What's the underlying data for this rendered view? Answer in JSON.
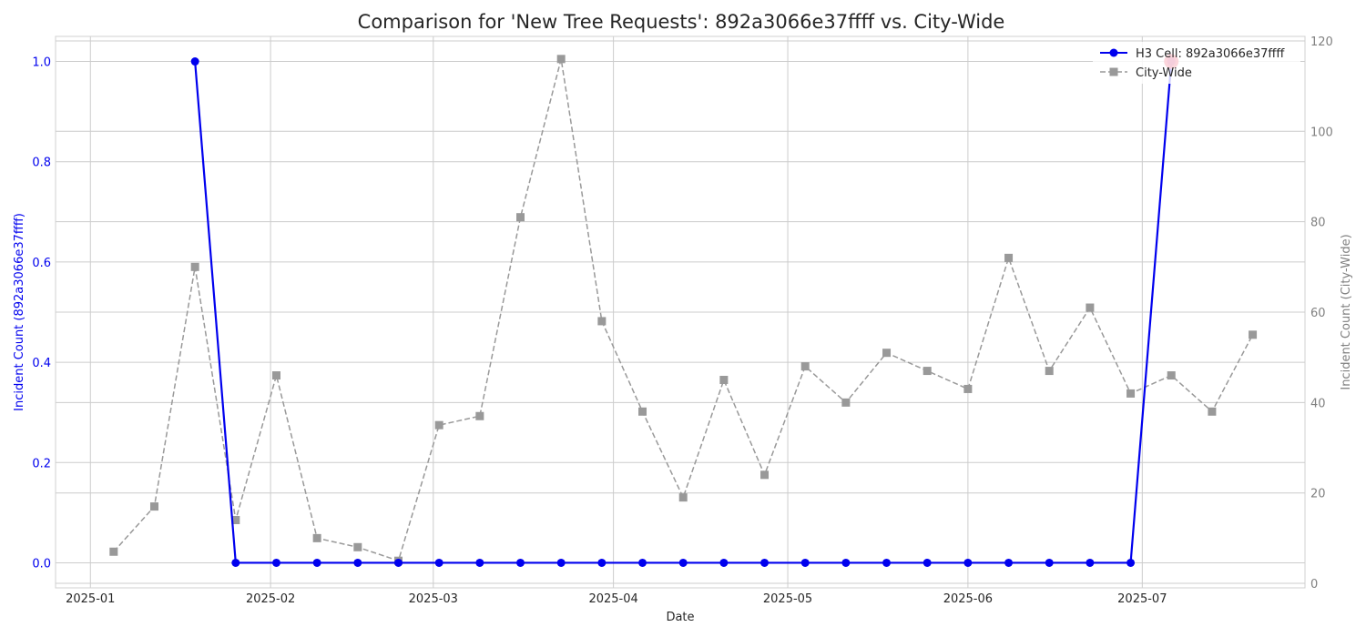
{
  "chart_data": {
    "type": "line",
    "title": "Comparison for 'New Tree Requests': 892a3066e37ffff vs. City-Wide",
    "xlabel": "Date",
    "ylabel_left": "Incident Count (892a3066e37ffff)",
    "ylabel_right": "Incident Count (City-Wide)",
    "xlim": [
      "2024-12-26",
      "2025-07-29"
    ],
    "ylim_left": [
      -0.05,
      1.05
    ],
    "ylim_right": [
      -1,
      121
    ],
    "x_ticks": [
      {
        "date": "2025-01-01",
        "label": "2025-01"
      },
      {
        "date": "2025-02-01",
        "label": "2025-02"
      },
      {
        "date": "2025-03-01",
        "label": "2025-03"
      },
      {
        "date": "2025-04-01",
        "label": "2025-04"
      },
      {
        "date": "2025-05-01",
        "label": "2025-05"
      },
      {
        "date": "2025-06-01",
        "label": "2025-06"
      },
      {
        "date": "2025-07-01",
        "label": "2025-07"
      }
    ],
    "y_ticks_left": [
      "0.0",
      "0.2",
      "0.4",
      "0.6",
      "0.8",
      "1.0"
    ],
    "y_ticks_right": [
      "0",
      "20",
      "40",
      "60",
      "80",
      "100",
      "120"
    ],
    "grid": true,
    "legend_position": "top-right",
    "highlight": {
      "date": "2025-07-06",
      "value": 1,
      "color": "#ee1133"
    },
    "series": [
      {
        "name": "H3 Cell: 892a3066e37ffff",
        "axis": "left",
        "color": "#0000ee",
        "line_style": "solid",
        "marker": "circle",
        "points": [
          {
            "x": "2025-01-19",
            "y": 1
          },
          {
            "x": "2025-01-26",
            "y": 0
          },
          {
            "x": "2025-02-02",
            "y": 0
          },
          {
            "x": "2025-02-09",
            "y": 0
          },
          {
            "x": "2025-02-16",
            "y": 0
          },
          {
            "x": "2025-02-23",
            "y": 0
          },
          {
            "x": "2025-03-02",
            "y": 0
          },
          {
            "x": "2025-03-09",
            "y": 0
          },
          {
            "x": "2025-03-16",
            "y": 0
          },
          {
            "x": "2025-03-23",
            "y": 0
          },
          {
            "x": "2025-03-30",
            "y": 0
          },
          {
            "x": "2025-04-06",
            "y": 0
          },
          {
            "x": "2025-04-13",
            "y": 0
          },
          {
            "x": "2025-04-20",
            "y": 0
          },
          {
            "x": "2025-04-27",
            "y": 0
          },
          {
            "x": "2025-05-04",
            "y": 0
          },
          {
            "x": "2025-05-11",
            "y": 0
          },
          {
            "x": "2025-05-18",
            "y": 0
          },
          {
            "x": "2025-05-25",
            "y": 0
          },
          {
            "x": "2025-06-01",
            "y": 0
          },
          {
            "x": "2025-06-08",
            "y": 0
          },
          {
            "x": "2025-06-15",
            "y": 0
          },
          {
            "x": "2025-06-22",
            "y": 0
          },
          {
            "x": "2025-06-29",
            "y": 0
          },
          {
            "x": "2025-07-06",
            "y": 1
          }
        ]
      },
      {
        "name": "City-Wide",
        "axis": "right",
        "color": "#999999",
        "line_style": "dashed",
        "marker": "square",
        "points": [
          {
            "x": "2025-01-05",
            "y": 7
          },
          {
            "x": "2025-01-12",
            "y": 17
          },
          {
            "x": "2025-01-19",
            "y": 70
          },
          {
            "x": "2025-01-26",
            "y": 14
          },
          {
            "x": "2025-02-02",
            "y": 46
          },
          {
            "x": "2025-02-09",
            "y": 10
          },
          {
            "x": "2025-02-16",
            "y": 8
          },
          {
            "x": "2025-02-23",
            "y": 5
          },
          {
            "x": "2025-03-02",
            "y": 35
          },
          {
            "x": "2025-03-09",
            "y": 37
          },
          {
            "x": "2025-03-16",
            "y": 81
          },
          {
            "x": "2025-03-23",
            "y": 116
          },
          {
            "x": "2025-03-30",
            "y": 58
          },
          {
            "x": "2025-04-06",
            "y": 38
          },
          {
            "x": "2025-04-13",
            "y": 19
          },
          {
            "x": "2025-04-20",
            "y": 45
          },
          {
            "x": "2025-04-27",
            "y": 24
          },
          {
            "x": "2025-05-04",
            "y": 48
          },
          {
            "x": "2025-05-11",
            "y": 40
          },
          {
            "x": "2025-05-18",
            "y": 51
          },
          {
            "x": "2025-05-25",
            "y": 47
          },
          {
            "x": "2025-06-01",
            "y": 43
          },
          {
            "x": "2025-06-08",
            "y": 72
          },
          {
            "x": "2025-06-15",
            "y": 47
          },
          {
            "x": "2025-06-22",
            "y": 61
          },
          {
            "x": "2025-06-29",
            "y": 42
          },
          {
            "x": "2025-07-06",
            "y": 46
          },
          {
            "x": "2025-07-13",
            "y": 38
          },
          {
            "x": "2025-07-20",
            "y": 55
          }
        ]
      }
    ]
  }
}
